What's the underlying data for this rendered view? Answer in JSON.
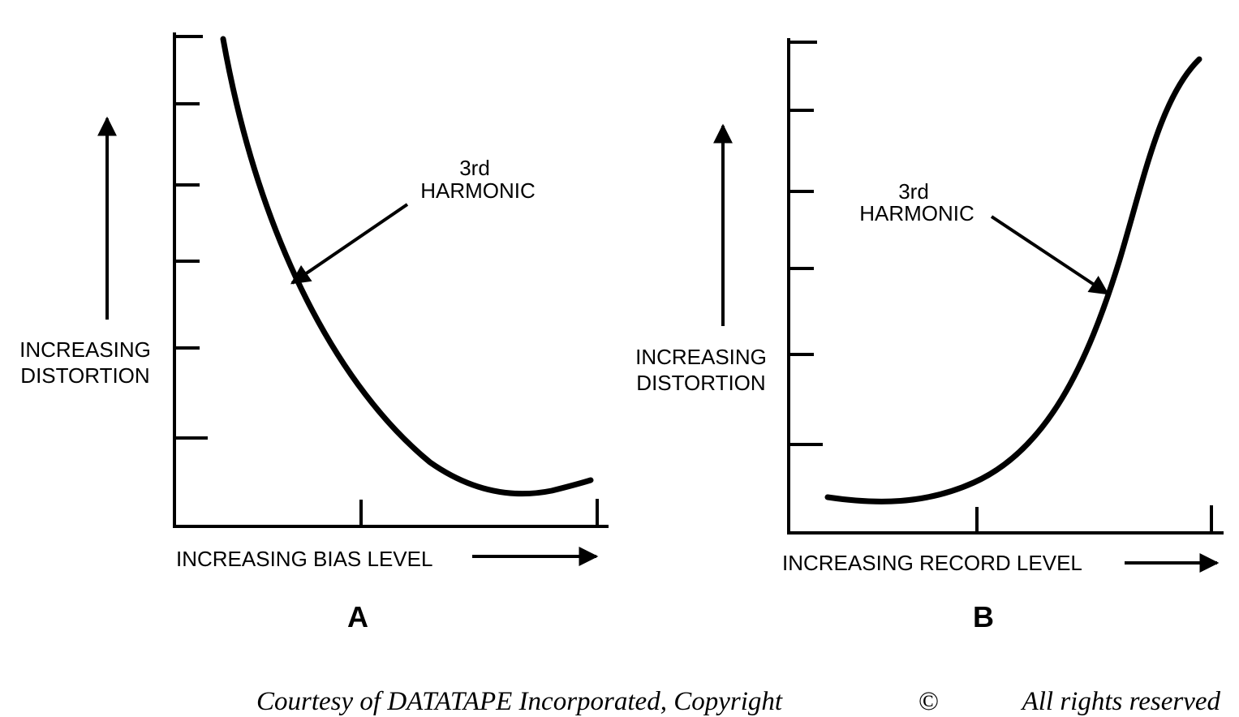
{
  "panels": [
    {
      "id": "A",
      "panel_label": "A",
      "y_axis_label_line1": "INCREASING",
      "y_axis_label_line2": "DISTORTION",
      "x_axis_label": "INCREASING BIAS LEVEL",
      "curve_label_line1": "3rd",
      "curve_label_line2": "HARMONIC",
      "curve_shape": "decreasing to a minimum near the high end, then rising slightly",
      "y_ticks": 6,
      "x_ticks": 2
    },
    {
      "id": "B",
      "panel_label": "B",
      "y_axis_label_line1": "INCREASING",
      "y_axis_label_line2": "DISTORTION",
      "x_axis_label": "INCREASING RECORD LEVEL",
      "curve_label_line1": "3rd",
      "curve_label_line2": "HARMONIC",
      "curve_shape": "flat near the low end, then rising steeply",
      "y_ticks": 6,
      "x_ticks": 2
    }
  ],
  "credit": {
    "text": "Courtesy of DATATAPE Incorporated, Copyright",
    "symbol": "©",
    "rights": "All rights reserved"
  }
}
